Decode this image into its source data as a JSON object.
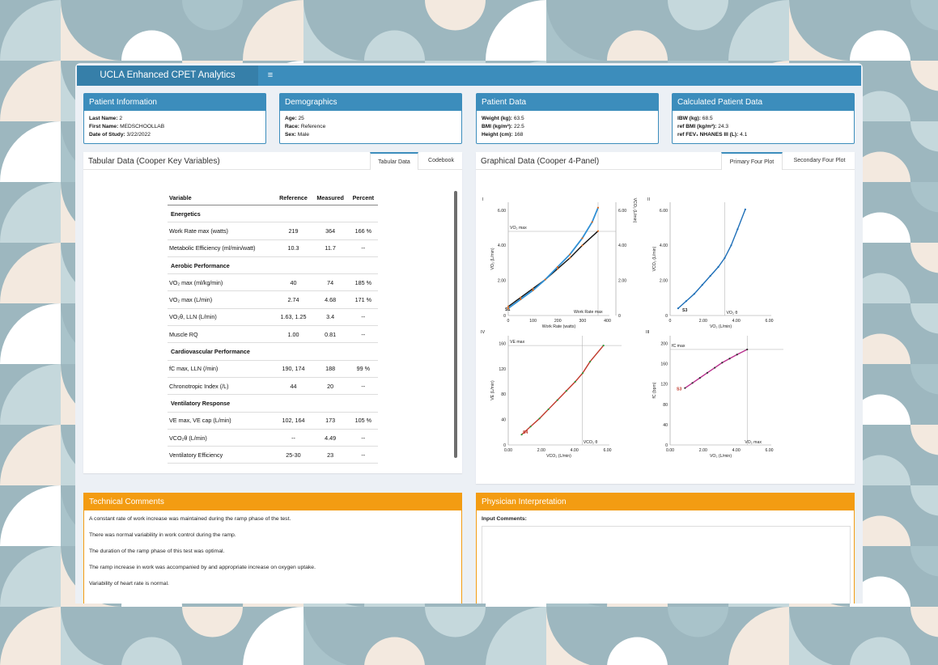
{
  "app": {
    "title": "UCLA Enhanced CPET Analytics",
    "menu_icon": "hamburger-icon"
  },
  "patient_info": {
    "title": "Patient Information",
    "rows": [
      {
        "label": "Last Name:",
        "value": "2"
      },
      {
        "label": "First Name:",
        "value": "MEDSCHOOLLAB"
      },
      {
        "label": "Date of Study:",
        "value": "3/22/2022"
      }
    ]
  },
  "demographics": {
    "title": "Demographics",
    "rows": [
      {
        "label": "Age:",
        "value": "25"
      },
      {
        "label": "Race:",
        "value": "Reference"
      },
      {
        "label": "Sex:",
        "value": "Male"
      }
    ]
  },
  "patient_data": {
    "title": "Patient Data",
    "rows": [
      {
        "label": "Weight (kg):",
        "value": "63.5"
      },
      {
        "label": "BMI (kg/m²):",
        "value": "22.5"
      },
      {
        "label": "Height (cm):",
        "value": "168"
      }
    ]
  },
  "calculated": {
    "title": "Calculated Patient Data",
    "rows": [
      {
        "label": "IBW (kg):",
        "value": "68.5"
      },
      {
        "label": "ref BMI (kg/m²):",
        "value": "24.3"
      },
      {
        "label": "ref FEV₁ NHANES III (L):",
        "value": "4.1"
      }
    ]
  },
  "tabular": {
    "title": "Tabular Data (Cooper Key Variables)",
    "tabs": [
      "Tabular Data",
      "Codebook"
    ],
    "headers": [
      "Variable",
      "Reference",
      "Measured",
      "Percent"
    ],
    "rows": [
      {
        "section": "Energetics"
      },
      {
        "var": "Work Rate max (watts)",
        "ref": "219",
        "meas": "364",
        "pct": "166 %"
      },
      {
        "var": "Metabolic Efficiency (ml/min/watt)",
        "ref": "10.3",
        "meas": "11.7",
        "pct": "--"
      },
      {
        "section": "Aerobic Performance"
      },
      {
        "var": "VO₂ max (ml/kg/min)",
        "ref": "40",
        "meas": "74",
        "pct": "185 %"
      },
      {
        "var": "VO₂ max (L/min)",
        "ref": "2.74",
        "meas": "4.68",
        "pct": "171 %"
      },
      {
        "var": "VO₂θ, LLN (L/min)",
        "ref": "1.63, 1.25",
        "meas": "3.4",
        "pct": "--"
      },
      {
        "var": "Muscle RQ",
        "ref": "1.00",
        "meas": "0.81",
        "pct": "--"
      },
      {
        "section": "Cardiovascular Performance"
      },
      {
        "var": "fC max, LLN (/min)",
        "ref": "190, 174",
        "meas": "188",
        "pct": "99 %"
      },
      {
        "var": "Chronotropic Index (/L)",
        "ref": "44",
        "meas": "20",
        "pct": "--"
      },
      {
        "section": "Ventilatory Response"
      },
      {
        "var": "VE max, VE cap (L/min)",
        "ref": "102, 164",
        "meas": "173",
        "pct": "105 %"
      },
      {
        "var": "VCO₂θ (L/min)",
        "ref": "--",
        "meas": "4.49",
        "pct": "--"
      },
      {
        "var": "Ventilatory Efficiency",
        "ref": "25-30",
        "meas": "23",
        "pct": "--"
      }
    ]
  },
  "graphical": {
    "title": "Graphical Data (Cooper 4-Panel)",
    "tabs": [
      "Primary Four Plot",
      "Secondary Four Plot"
    ]
  },
  "chart_data": [
    {
      "type": "scatter",
      "panel": "I",
      "xlabel": "Work Rate (watts)",
      "ylabel": "VO₂ (L/min)",
      "y2label": "VCO₂ (L/min)",
      "xticks": [
        "0",
        "100",
        "200",
        "300",
        "400"
      ],
      "yticks": [
        "0",
        "2.00",
        "4.00",
        "6.00"
      ],
      "y2ticks": [
        "0",
        "2.00",
        "4.00",
        "6.00"
      ],
      "xlim": [
        0,
        410
      ],
      "ylim": [
        0,
        6.3
      ],
      "annotations": [
        "VO₂ max",
        "Work Rate max",
        "S1"
      ],
      "ref_lines": {
        "vo2max": 4.68,
        "work_rate_max": 364
      },
      "series": [
        {
          "values_x": [
            0,
            50,
            100,
            150,
            200,
            250,
            300,
            364
          ],
          "values_y": [
            0.5,
            1.0,
            1.5,
            2.0,
            2.6,
            3.2,
            3.9,
            4.7
          ]
        },
        {
          "values_x": [
            0,
            50,
            100,
            150,
            200,
            250,
            300,
            340,
            364
          ],
          "values_y": [
            0.4,
            0.9,
            1.4,
            2.0,
            2.7,
            3.4,
            4.3,
            5.2,
            6.0
          ]
        }
      ]
    },
    {
      "type": "scatter",
      "panel": "II",
      "xlabel": "VO₂ (L/min)",
      "ylabel": "VCO₂ (L/min)",
      "xticks": [
        "0",
        "2.00",
        "4.00",
        "6.00"
      ],
      "yticks": [
        "0",
        "2.00",
        "4.00",
        "6.00"
      ],
      "xlim": [
        0,
        6.3
      ],
      "ylim": [
        0,
        6.3
      ],
      "annotations": [
        "S3",
        "VO₂ θ"
      ],
      "ref_lines": {
        "vo2_theta": 3.4
      },
      "series": [
        {
          "values_x": [
            0.5,
            1.0,
            1.5,
            2.0,
            2.5,
            3.0,
            3.4,
            3.8,
            4.2,
            4.68
          ],
          "values_y": [
            0.4,
            0.8,
            1.2,
            1.7,
            2.2,
            2.7,
            3.2,
            3.9,
            4.8,
            5.9
          ]
        }
      ]
    },
    {
      "type": "scatter",
      "panel": "IV",
      "xlabel": "VCO₂ (L/min)",
      "ylabel": "VE (L/min)",
      "xticks": [
        "0.00",
        "2.00",
        "4.00",
        "6.00"
      ],
      "yticks": [
        "0",
        "40",
        "80",
        "120",
        "160"
      ],
      "xlim": [
        -0.5,
        6.3
      ],
      "ylim": [
        0,
        190
      ],
      "annotations": [
        "VE max",
        "S4",
        "VCO₂ θ"
      ],
      "ref_lines": {
        "ve_max": 173,
        "vco2_theta": 4.49
      },
      "series": [
        {
          "values_x": [
            0.4,
            1.0,
            1.6,
            2.2,
            2.8,
            3.4,
            4.0,
            4.5,
            5.0,
            5.9
          ],
          "values_y": [
            18,
            32,
            46,
            62,
            78,
            94,
            110,
            125,
            145,
            173
          ]
        }
      ]
    },
    {
      "type": "scatter",
      "panel": "III",
      "xlabel": "VO₂ (L/min)",
      "ylabel": "fC (bpm)",
      "xticks": [
        "0.00",
        "2.00",
        "4.00",
        "6.00"
      ],
      "yticks": [
        "0",
        "40",
        "80",
        "120",
        "160",
        "200"
      ],
      "xlim": [
        -0.5,
        6.3
      ],
      "ylim": [
        0,
        215
      ],
      "annotations": [
        "fC max",
        "S3",
        "VO₂ max"
      ],
      "ref_lines": {
        "fc_max": 188,
        "vo2max": 4.68
      },
      "series": [
        {
          "values_x": [
            0.5,
            1.0,
            1.5,
            2.0,
            2.5,
            3.0,
            3.5,
            4.0,
            4.68
          ],
          "values_y": [
            112,
            122,
            132,
            142,
            152,
            162,
            170,
            178,
            188
          ]
        }
      ]
    }
  ],
  "technical": {
    "title": "Technical Comments",
    "lines": [
      "A constant rate of work increase was maintained during the ramp phase of the test.",
      "There was normal variability in work control during the ramp.",
      "The duration of the ramp phase of this test was optimal.",
      "The ramp increase in work was accompanied by and appropriate increase on oxygen uptake.",
      "Variability of heart rate is normal."
    ]
  },
  "physician": {
    "title": "Physician Interpretation",
    "input_label": "Input Comments:"
  }
}
